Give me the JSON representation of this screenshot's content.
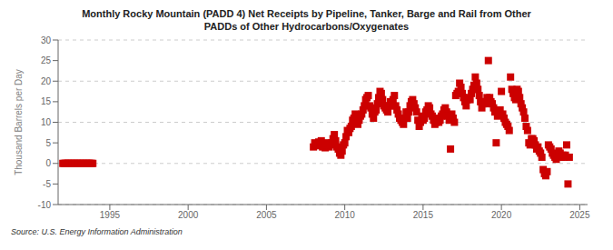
{
  "chart_data": {
    "type": "scatter",
    "title": "Monthly Rocky Mountain (PADD 4) Net Receipts by Pipeline, Tanker, Barge and Rail from Other\nPADDs of Other Hydrocarbons/Oxygenates",
    "y_label": "Thousand Barrels per Day",
    "annotations": [
      "Source: U.S. Energy Information Administration"
    ],
    "color": "#cc0000",
    "marker": "square",
    "grid": true,
    "xlim": [
      1991.7,
      2025.5
    ],
    "ylim": [
      -10,
      30
    ],
    "xticks": [
      1995,
      2000,
      2005,
      2010,
      2015,
      2020,
      2025
    ],
    "yticks": [
      -10,
      -5,
      0,
      5,
      10,
      15,
      20,
      25,
      30
    ],
    "x": [
      1992.0,
      1992.083,
      1992.167,
      1992.25,
      1992.333,
      1992.417,
      1992.5,
      1992.583,
      1992.667,
      1992.75,
      1992.833,
      1992.917,
      1993.0,
      1993.083,
      1993.167,
      1993.25,
      1993.333,
      1993.417,
      1993.5,
      1993.583,
      1993.667,
      1993.75,
      1993.833,
      1993.917,
      2008.0,
      2008.083,
      2008.167,
      2008.25,
      2008.333,
      2008.417,
      2008.5,
      2008.583,
      2008.667,
      2008.75,
      2008.833,
      2008.917,
      2009.0,
      2009.083,
      2009.167,
      2009.25,
      2009.333,
      2009.417,
      2009.5,
      2009.583,
      2009.667,
      2009.75,
      2009.833,
      2009.917,
      2010.0,
      2010.083,
      2010.167,
      2010.25,
      2010.333,
      2010.417,
      2010.5,
      2010.583,
      2010.667,
      2010.75,
      2010.833,
      2010.917,
      2011.0,
      2011.083,
      2011.167,
      2011.25,
      2011.333,
      2011.417,
      2011.5,
      2011.583,
      2011.667,
      2011.75,
      2011.833,
      2011.917,
      2012.0,
      2012.083,
      2012.167,
      2012.25,
      2012.333,
      2012.417,
      2012.5,
      2012.583,
      2012.667,
      2012.75,
      2012.833,
      2012.917,
      2013.0,
      2013.083,
      2013.167,
      2013.25,
      2013.333,
      2013.417,
      2013.5,
      2013.583,
      2013.667,
      2013.75,
      2013.833,
      2013.917,
      2014.0,
      2014.083,
      2014.167,
      2014.25,
      2014.333,
      2014.417,
      2014.5,
      2014.583,
      2014.667,
      2014.75,
      2014.833,
      2014.917,
      2015.0,
      2015.083,
      2015.167,
      2015.25,
      2015.333,
      2015.417,
      2015.5,
      2015.583,
      2015.667,
      2015.75,
      2015.833,
      2015.917,
      2016.0,
      2016.083,
      2016.167,
      2016.25,
      2016.333,
      2016.417,
      2016.5,
      2016.583,
      2016.667,
      2016.75,
      2016.833,
      2016.917,
      2017.0,
      2017.083,
      2017.167,
      2017.25,
      2017.333,
      2017.417,
      2017.5,
      2017.583,
      2017.667,
      2017.75,
      2017.833,
      2017.917,
      2018.0,
      2018.083,
      2018.167,
      2018.25,
      2018.333,
      2018.417,
      2018.5,
      2018.583,
      2018.667,
      2018.75,
      2018.833,
      2018.917,
      2019.0,
      2019.083,
      2019.167,
      2019.25,
      2019.333,
      2019.417,
      2019.5,
      2019.583,
      2019.667,
      2019.75,
      2019.833,
      2019.917,
      2020.0,
      2020.083,
      2020.167,
      2020.25,
      2020.333,
      2020.417,
      2020.5,
      2020.583,
      2020.667,
      2020.75,
      2020.833,
      2020.917,
      2021.0,
      2021.083,
      2021.167,
      2021.25,
      2021.333,
      2021.417,
      2021.5,
      2021.583,
      2021.667,
      2021.75,
      2021.833,
      2021.917,
      2022.0,
      2022.083,
      2022.167,
      2022.25,
      2022.333,
      2022.417,
      2022.5,
      2022.583,
      2022.667,
      2022.75,
      2022.833,
      2022.917,
      2023.0,
      2023.083,
      2023.167,
      2023.25,
      2023.333,
      2023.417,
      2023.5,
      2023.583,
      2023.667,
      2023.75,
      2023.833,
      2023.917,
      2024.0,
      2024.083,
      2024.167,
      2024.25,
      2024.333
    ],
    "values": [
      0.0,
      0.0,
      0.0,
      0.0,
      0.0,
      0.0,
      0.0,
      0.0,
      0.0,
      0.0,
      0.0,
      0.0,
      0.0,
      0.0,
      0.0,
      0.0,
      0.0,
      0.0,
      0.0,
      0.0,
      0.0,
      0.0,
      0.0,
      0.0,
      4.0,
      5.0,
      4.5,
      4.8,
      5.2,
      4.3,
      5.5,
      4.0,
      4.2,
      3.8,
      4.5,
      5.0,
      4.0,
      4.5,
      5.0,
      6.0,
      7.0,
      5.5,
      4.0,
      3.5,
      2.5,
      2.0,
      3.0,
      4.5,
      5.0,
      6.5,
      8.0,
      7.5,
      8.5,
      9.0,
      10.5,
      11.0,
      12.0,
      10.0,
      9.5,
      10.5,
      11.5,
      12.0,
      13.0,
      14.0,
      15.5,
      16.0,
      16.5,
      14.0,
      13.5,
      12.0,
      11.0,
      12.5,
      13.0,
      14.5,
      16.0,
      17.5,
      17.0,
      15.5,
      14.0,
      13.5,
      13.0,
      12.5,
      14.0,
      15.0,
      14.0,
      15.5,
      16.5,
      14.0,
      13.0,
      12.0,
      11.0,
      10.5,
      10.0,
      9.5,
      11.0,
      12.5,
      11.0,
      12.5,
      14.0,
      15.0,
      15.5,
      14.5,
      13.5,
      12.5,
      10.5,
      9.0,
      10.0,
      11.5,
      10.5,
      11.0,
      12.5,
      13.0,
      14.0,
      13.5,
      12.0,
      11.5,
      10.5,
      9.5,
      10.0,
      11.0,
      10.0,
      10.5,
      11.5,
      12.0,
      13.0,
      13.5,
      12.5,
      11.5,
      10.5,
      3.5,
      12.0,
      11.0,
      10.0,
      16.5,
      17.0,
      17.5,
      19.5,
      18.5,
      17.0,
      16.0,
      15.0,
      14.0,
      15.5,
      16.0,
      15.5,
      17.0,
      18.0,
      19.0,
      21.0,
      19.5,
      18.0,
      16.5,
      15.0,
      13.5,
      14.5,
      15.0,
      14.5,
      16.0,
      25.0,
      16.0,
      15.0,
      14.5,
      13.5,
      12.5,
      5.0,
      11.5,
      12.0,
      13.0,
      17.5,
      12.0,
      11.0,
      10.0,
      9.5,
      9.0,
      8.0,
      21.0,
      18.0,
      17.0,
      16.0,
      15.5,
      18.0,
      17.5,
      16.0,
      14.5,
      13.5,
      12.5,
      11.0,
      9.0,
      8.0,
      5.0,
      4.5,
      6.0,
      6.0,
      5.5,
      4.5,
      3.5,
      4.0,
      3.0,
      2.5,
      1.5,
      -1.5,
      -2.5,
      -3.0,
      -2.0,
      4.5,
      4.0,
      3.5,
      2.5,
      2.0,
      1.5,
      1.0,
      2.0,
      3.0,
      2.5,
      1.5,
      2.0,
      1.5,
      2.0,
      4.5,
      -5.0,
      1.5
    ]
  }
}
